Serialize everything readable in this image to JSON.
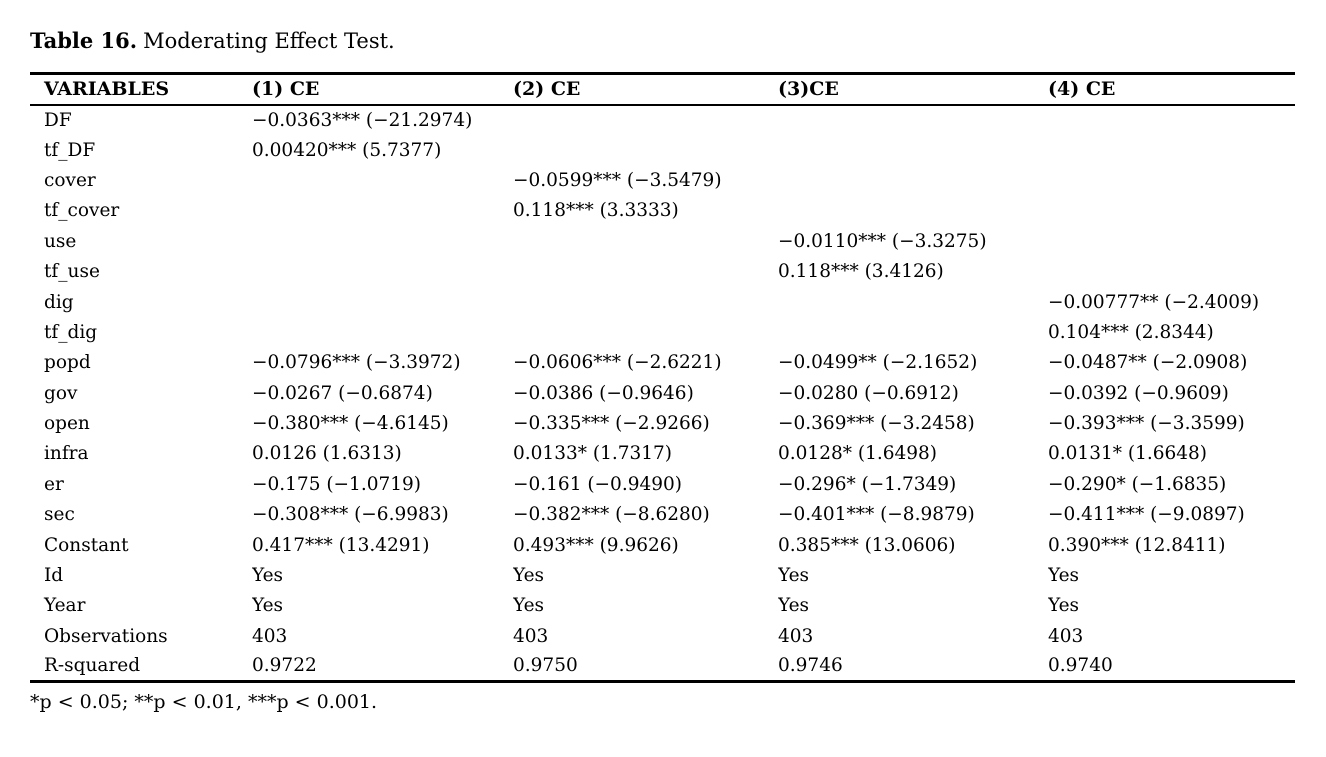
{
  "caption": {
    "label": "Table 16.",
    "text": "Moderating Effect Test."
  },
  "table": {
    "columns": [
      "VARIABLES",
      "(1) CE",
      "(2) CE",
      "(3)CE",
      "(4) CE"
    ],
    "rows": [
      {
        "variable": "DF",
        "values": [
          "−0.0363*** (−21.2974)",
          "",
          "",
          ""
        ]
      },
      {
        "variable": "tf_DF",
        "values": [
          "0.00420*** (5.7377)",
          "",
          "",
          ""
        ]
      },
      {
        "variable": "cover",
        "values": [
          "",
          "−0.0599*** (−3.5479)",
          "",
          ""
        ]
      },
      {
        "variable": "tf_cover",
        "values": [
          "",
          "0.118*** (3.3333)",
          "",
          ""
        ]
      },
      {
        "variable": "use",
        "values": [
          "",
          "",
          "−0.0110*** (−3.3275)",
          ""
        ]
      },
      {
        "variable": "tf_use",
        "values": [
          "",
          "",
          "0.118*** (3.4126)",
          ""
        ]
      },
      {
        "variable": "dig",
        "values": [
          "",
          "",
          "",
          "−0.00777** (−2.4009)"
        ]
      },
      {
        "variable": "tf_dig",
        "values": [
          "",
          "",
          "",
          "0.104*** (2.8344)"
        ]
      },
      {
        "variable": "popd",
        "values": [
          "−0.0796*** (−3.3972)",
          "−0.0606*** (−2.6221)",
          "−0.0499** (−2.1652)",
          "−0.0487** (−2.0908)"
        ]
      },
      {
        "variable": "gov",
        "values": [
          "−0.0267 (−0.6874)",
          "−0.0386 (−0.9646)",
          "−0.0280 (−0.6912)",
          "−0.0392 (−0.9609)"
        ]
      },
      {
        "variable": "open",
        "values": [
          "−0.380*** (−4.6145)",
          "−0.335*** (−2.9266)",
          "−0.369*** (−3.2458)",
          "−0.393*** (−3.3599)"
        ]
      },
      {
        "variable": "infra",
        "values": [
          "0.0126 (1.6313)",
          "0.0133* (1.7317)",
          "0.0128* (1.6498)",
          "0.0131* (1.6648)"
        ]
      },
      {
        "variable": "er",
        "values": [
          "−0.175 (−1.0719)",
          "−0.161 (−0.9490)",
          "−0.296* (−1.7349)",
          "−0.290* (−1.6835)"
        ]
      },
      {
        "variable": "sec",
        "values": [
          "−0.308*** (−6.9983)",
          "−0.382*** (−8.6280)",
          "−0.401*** (−8.9879)",
          "−0.411*** (−9.0897)"
        ]
      },
      {
        "variable": "Constant",
        "values": [
          "0.417*** (13.4291)",
          "0.493*** (9.9626)",
          "0.385*** (13.0606)",
          "0.390*** (12.8411)"
        ]
      },
      {
        "variable": "Id",
        "values": [
          "Yes",
          "Yes",
          "Yes",
          "Yes"
        ]
      },
      {
        "variable": "Year",
        "values": [
          "Yes",
          "Yes",
          "Yes",
          "Yes"
        ]
      },
      {
        "variable": "Observations",
        "values": [
          "403",
          "403",
          "403",
          "403"
        ]
      },
      {
        "variable": "R-squared",
        "values": [
          "0.9722",
          "0.9750",
          "0.9746",
          "0.9740"
        ]
      }
    ]
  },
  "footnote": "*p < 0.05; **p < 0.01, ***p < 0.001.",
  "colors": {
    "text": "#000000",
    "background": "#ffffff",
    "rule": "#000000"
  }
}
